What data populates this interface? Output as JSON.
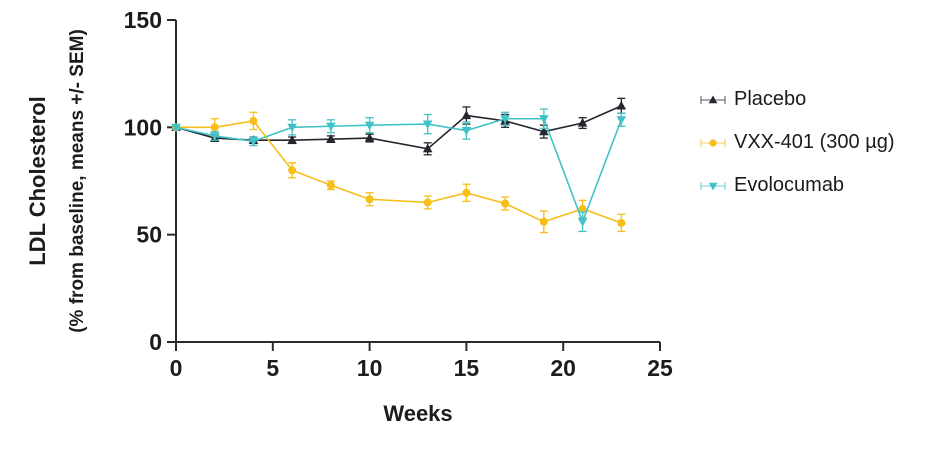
{
  "chart_data": {
    "type": "line",
    "x": [
      0,
      2,
      4,
      6,
      8,
      10,
      13,
      15,
      17,
      19,
      21,
      23
    ],
    "series": [
      {
        "name": "Placebo",
        "color": "#24272E",
        "marker": "triangle-up",
        "values": [
          100,
          95,
          94,
          94,
          94.5,
          95,
          90,
          105.5,
          103,
          98,
          102,
          110
        ],
        "sem": [
          0.8,
          1.5,
          1.5,
          1.5,
          1.5,
          1.8,
          2.8,
          4,
          3,
          3,
          2.5,
          3.5
        ]
      },
      {
        "name": "VXX-401 (300 µg)",
        "color": "#F6BE17",
        "marker": "circle",
        "values": [
          100,
          100,
          103,
          80,
          73,
          66.5,
          65,
          69.5,
          64.5,
          56,
          62,
          55.5
        ],
        "sem": [
          0.8,
          4,
          4,
          3.5,
          2,
          3,
          3,
          4,
          3,
          5,
          4,
          4
        ]
      },
      {
        "name": "Evolocumab",
        "color": "#41C2C6",
        "marker": "triangle-down",
        "values": [
          100,
          96,
          93.5,
          100,
          100.5,
          101,
          101.5,
          98.5,
          104,
          104,
          56,
          103.5
        ],
        "sem": [
          0.8,
          2,
          2,
          3.5,
          3,
          3.5,
          4.5,
          4,
          3,
          4.5,
          4.5,
          3
        ]
      }
    ],
    "title": "",
    "xlabel": "Weeks",
    "ylabel_line1": "LDL Cholesterol",
    "ylabel_line2": "(% from baseline, means +/- SEM)",
    "xlim": [
      0,
      25
    ],
    "ylim": [
      0,
      150
    ],
    "x_ticks": [
      0,
      5,
      10,
      15,
      20,
      25
    ],
    "y_ticks": [
      0,
      50,
      100,
      150
    ],
    "grid": false,
    "legend_position": "right",
    "axis_color": "#2A2A2A",
    "text_color": "#1C1C1C"
  }
}
